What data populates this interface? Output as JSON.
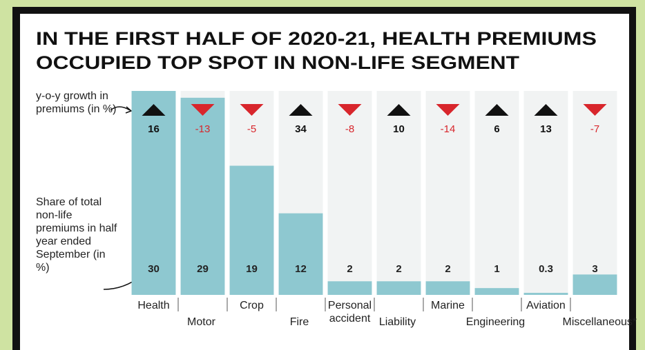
{
  "chart_data": {
    "type": "bar",
    "title": [
      "IN THE FIRST HALF OF 2020-21, HEALTH PREMIUMS",
      "OCCUPIED TOP SPOT IN NON-LIFE SEGMENT"
    ],
    "growth_label": "y-o-y growth in premiums (in %)",
    "share_label": "Share of total non-life premiums in half year ended September (in %)",
    "categories": [
      "Health",
      "Motor",
      "Crop",
      "Fire",
      "Personal accident",
      "Liability",
      "Marine",
      "Engineering",
      "Aviation",
      "Miscellaneous*"
    ],
    "values": [
      30,
      29,
      19,
      12,
      2,
      2,
      2,
      1,
      0.3,
      3
    ],
    "growth": [
      16,
      -13,
      -5,
      34,
      -8,
      10,
      -14,
      6,
      13,
      -7
    ],
    "color": "#8ec8d0",
    "up_color": "#111111",
    "down_color": "#d8262c",
    "ylim": [
      0,
      30
    ]
  }
}
